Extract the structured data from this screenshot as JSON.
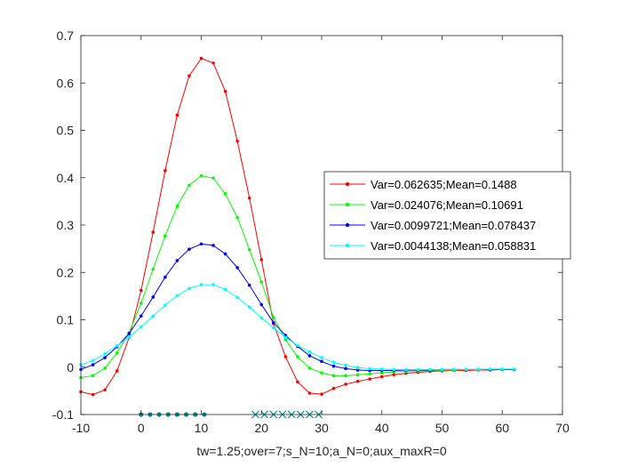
{
  "chart_data": {
    "type": "line",
    "title": "",
    "xlabel": "tw=1.25;over=7;s_N=10;a_N=0;aux_maxR=0",
    "ylabel": "",
    "xlim": [
      -10,
      70
    ],
    "ylim": [
      -0.1,
      0.7
    ],
    "xticks": [
      -10,
      0,
      10,
      20,
      30,
      40,
      50,
      60,
      70
    ],
    "yticks": [
      -0.1,
      0,
      0.1,
      0.2,
      0.3,
      0.4,
      0.5,
      0.6,
      0.7
    ],
    "xtick_labels": [
      "-10",
      "0",
      "10",
      "20",
      "30",
      "40",
      "50",
      "60",
      "70"
    ],
    "ytick_labels": [
      "-0.1",
      "0",
      "0.1",
      "0.2",
      "0.3",
      "0.4",
      "0.5",
      "0.6",
      "0.7"
    ],
    "grid": false,
    "legend_position": "right",
    "x": [
      -10,
      -8,
      -6,
      -4,
      -2,
      0,
      2,
      4,
      6,
      8,
      10,
      12,
      14,
      16,
      18,
      20,
      22,
      24,
      26,
      28,
      30,
      32,
      34,
      36,
      38,
      40,
      42,
      44,
      46,
      48,
      50,
      52,
      54,
      56,
      58,
      60,
      62
    ],
    "series": [
      {
        "name": "Var=0.062635;Mean=0.1488",
        "color": "#ff0000",
        "values": [
          -0.052,
          -0.058,
          -0.048,
          -0.008,
          0.062,
          0.162,
          0.285,
          0.415,
          0.532,
          0.615,
          0.652,
          0.642,
          0.582,
          0.477,
          0.357,
          0.227,
          0.092,
          0.022,
          -0.031,
          -0.055,
          -0.057,
          -0.045,
          -0.036,
          -0.03,
          -0.025,
          -0.02,
          -0.016,
          -0.013,
          -0.011,
          -0.009,
          -0.008,
          -0.007,
          -0.007,
          -0.006,
          -0.006,
          -0.005,
          -0.005
        ]
      },
      {
        "name": "Var=0.024076;Mean=0.10691",
        "color": "#00ff00",
        "values": [
          -0.022,
          -0.018,
          -0.002,
          0.03,
          0.072,
          0.135,
          0.207,
          0.277,
          0.34,
          0.384,
          0.404,
          0.399,
          0.366,
          0.316,
          0.248,
          0.18,
          0.105,
          0.058,
          0.022,
          -0.002,
          -0.012,
          -0.018,
          -0.018,
          -0.016,
          -0.014,
          -0.012,
          -0.01,
          -0.009,
          -0.008,
          -0.007,
          -0.006,
          -0.006,
          -0.005,
          -0.005,
          -0.005,
          -0.005,
          -0.005
        ]
      },
      {
        "name": "Var=0.0099721;Mean=0.078437",
        "color": "#0000ff",
        "values": [
          -0.005,
          0.005,
          0.02,
          0.043,
          0.071,
          0.108,
          0.148,
          0.19,
          0.225,
          0.249,
          0.26,
          0.257,
          0.239,
          0.21,
          0.173,
          0.132,
          0.094,
          0.067,
          0.044,
          0.024,
          0.012,
          0.002,
          -0.003,
          -0.006,
          -0.007,
          -0.007,
          -0.007,
          -0.006,
          -0.006,
          -0.006,
          -0.005,
          -0.005,
          -0.005,
          -0.005,
          -0.005,
          -0.005,
          -0.005
        ]
      },
      {
        "name": "Var=0.0044138;Mean=0.058831",
        "color": "#00ffff",
        "values": [
          0.005,
          0.014,
          0.028,
          0.045,
          0.063,
          0.085,
          0.108,
          0.131,
          0.151,
          0.166,
          0.174,
          0.174,
          0.164,
          0.147,
          0.127,
          0.104,
          0.083,
          0.063,
          0.046,
          0.032,
          0.02,
          0.01,
          0.004,
          -0.001,
          -0.003,
          -0.004,
          -0.005,
          -0.005,
          -0.005,
          -0.005,
          -0.005,
          -0.005,
          -0.005,
          -0.005,
          -0.004,
          -0.004,
          -0.004
        ]
      }
    ],
    "markers_bottom": [
      {
        "symbol": "dot",
        "color": "#008b8b",
        "y": -0.1,
        "x": [
          0,
          1.5,
          3,
          4.5,
          6,
          7.5,
          9,
          10.5
        ]
      },
      {
        "symbol": "x",
        "color": "#008b8b",
        "y": -0.1,
        "x": [
          19,
          20.5,
          22,
          23.5,
          25,
          26.5,
          28,
          29.5
        ]
      }
    ]
  }
}
